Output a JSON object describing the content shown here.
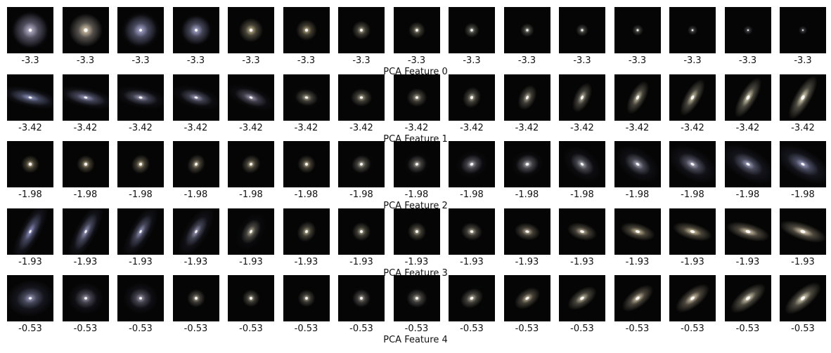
{
  "rows": [
    {
      "title": "PCA Feature 0",
      "value_label": "-3.3",
      "tiles": [
        {
          "halo": 0.95,
          "core": 0.55,
          "elong": 1.0,
          "angle": 0,
          "tint": "#b8b0c8",
          "wisp": 0.6
        },
        {
          "halo": 0.9,
          "core": 0.75,
          "elong": 1.0,
          "angle": 0,
          "tint": "#d8c8a8",
          "wisp": 0.45
        },
        {
          "halo": 0.85,
          "core": 0.45,
          "elong": 1.05,
          "angle": 20,
          "tint": "#a8a8d0",
          "wisp": 0.55
        },
        {
          "halo": 0.75,
          "core": 0.5,
          "elong": 1.0,
          "angle": 0,
          "tint": "#b0b0d8",
          "wisp": 0.4
        },
        {
          "halo": 0.6,
          "core": 0.6,
          "elong": 1.0,
          "angle": 0,
          "tint": "#e0d0a0",
          "wisp": 0.15
        },
        {
          "halo": 0.5,
          "core": 0.55,
          "elong": 1.0,
          "angle": 0,
          "tint": "#e0d0a0",
          "wisp": 0.05
        },
        {
          "halo": 0.42,
          "core": 0.5,
          "elong": 1.0,
          "angle": 0,
          "tint": "#e0d8b8",
          "wisp": 0.0
        },
        {
          "halo": 0.36,
          "core": 0.45,
          "elong": 1.0,
          "angle": 0,
          "tint": "#e0d8b8",
          "wisp": 0.0
        },
        {
          "halo": 0.3,
          "core": 0.4,
          "elong": 1.0,
          "angle": 0,
          "tint": "#e0e0d0",
          "wisp": 0.0
        },
        {
          "halo": 0.26,
          "core": 0.35,
          "elong": 1.0,
          "angle": 0,
          "tint": "#e0e0d0",
          "wisp": 0.0
        },
        {
          "halo": 0.22,
          "core": 0.3,
          "elong": 1.0,
          "angle": 0,
          "tint": "#d8d8d0",
          "wisp": 0.0
        },
        {
          "halo": 0.18,
          "core": 0.25,
          "elong": 1.0,
          "angle": 0,
          "tint": "#d0d0c8",
          "wisp": 0.0
        },
        {
          "halo": 0.14,
          "core": 0.18,
          "elong": 1.0,
          "angle": 0,
          "tint": "#c8c8c8",
          "wisp": 0.0
        },
        {
          "halo": 0.12,
          "core": 0.14,
          "elong": 1.0,
          "angle": 0,
          "tint": "#b8b8c0",
          "wisp": 0.0
        },
        {
          "halo": 0.1,
          "core": 0.1,
          "elong": 1.0,
          "angle": 0,
          "tint": "#b0b0c0",
          "wisp": 0.0
        }
      ]
    },
    {
      "title": "PCA Feature 1",
      "value_label": "-3.42",
      "tiles": [
        {
          "halo": 0.6,
          "core": 0.45,
          "elong": 3.0,
          "angle": -12,
          "tint": "#a0a8d8",
          "wisp": 0.5
        },
        {
          "halo": 0.6,
          "core": 0.45,
          "elong": 2.8,
          "angle": -12,
          "tint": "#a8a8d0",
          "wisp": 0.45
        },
        {
          "halo": 0.55,
          "core": 0.5,
          "elong": 2.4,
          "angle": -10,
          "tint": "#b0b0d0",
          "wisp": 0.35
        },
        {
          "halo": 0.55,
          "core": 0.45,
          "elong": 2.2,
          "angle": -15,
          "tint": "#b0b0d0",
          "wisp": 0.3
        },
        {
          "halo": 0.55,
          "core": 0.45,
          "elong": 2.2,
          "angle": -20,
          "tint": "#b8b0c8",
          "wisp": 0.3
        },
        {
          "halo": 0.45,
          "core": 0.45,
          "elong": 1.4,
          "angle": -10,
          "tint": "#d8d0b0",
          "wisp": 0.1
        },
        {
          "halo": 0.45,
          "core": 0.45,
          "elong": 1.2,
          "angle": 0,
          "tint": "#d8d0b0",
          "wisp": 0.05
        },
        {
          "halo": 0.45,
          "core": 0.45,
          "elong": 1.1,
          "angle": 0,
          "tint": "#d8d0b8",
          "wisp": 0.0
        },
        {
          "halo": 0.45,
          "core": 0.55,
          "elong": 1.2,
          "angle": 70,
          "tint": "#e0d8c0",
          "wisp": 0.0
        },
        {
          "halo": 0.5,
          "core": 0.55,
          "elong": 1.6,
          "angle": 65,
          "tint": "#e0d8c0",
          "wisp": 0.0
        },
        {
          "halo": 0.55,
          "core": 0.6,
          "elong": 2.0,
          "angle": 65,
          "tint": "#e0d8c0",
          "wisp": 0.0
        },
        {
          "halo": 0.6,
          "core": 0.65,
          "elong": 2.3,
          "angle": 62,
          "tint": "#e8e0c0",
          "wisp": 0.0
        },
        {
          "halo": 0.65,
          "core": 0.7,
          "elong": 2.6,
          "angle": 60,
          "tint": "#e8e0c0",
          "wisp": 0.0
        },
        {
          "halo": 0.7,
          "core": 0.75,
          "elong": 2.8,
          "angle": 60,
          "tint": "#f0e8c8",
          "wisp": 0.0
        },
        {
          "halo": 0.75,
          "core": 0.8,
          "elong": 3.0,
          "angle": 60,
          "tint": "#f0e8c8",
          "wisp": 0.0
        }
      ]
    },
    {
      "title": "PCA Feature 2",
      "value_label": "-1.98",
      "tiles": [
        {
          "halo": 0.4,
          "core": 0.6,
          "elong": 1.0,
          "angle": 0,
          "tint": "#f0e0b0",
          "wisp": 0.0
        },
        {
          "halo": 0.4,
          "core": 0.55,
          "elong": 1.0,
          "angle": 0,
          "tint": "#f0e0b0",
          "wisp": 0.0
        },
        {
          "halo": 0.42,
          "core": 0.55,
          "elong": 1.1,
          "angle": 60,
          "tint": "#f0e0b0",
          "wisp": 0.05
        },
        {
          "halo": 0.42,
          "core": 0.5,
          "elong": 1.2,
          "angle": 60,
          "tint": "#e8d8b0",
          "wisp": 0.05
        },
        {
          "halo": 0.42,
          "core": 0.5,
          "elong": 1.1,
          "angle": 40,
          "tint": "#e8d8b0",
          "wisp": 0.05
        },
        {
          "halo": 0.4,
          "core": 0.5,
          "elong": 1.0,
          "angle": 0,
          "tint": "#e8d8b0",
          "wisp": 0.05
        },
        {
          "halo": 0.42,
          "core": 0.5,
          "elong": 1.1,
          "angle": 20,
          "tint": "#e0d8c0",
          "wisp": 0.1
        },
        {
          "halo": 0.42,
          "core": 0.5,
          "elong": 1.1,
          "angle": 20,
          "tint": "#d8d0c0",
          "wisp": 0.15
        },
        {
          "halo": 0.48,
          "core": 0.55,
          "elong": 1.2,
          "angle": 20,
          "tint": "#c8c8d0",
          "wisp": 0.25
        },
        {
          "halo": 0.5,
          "core": 0.55,
          "elong": 1.2,
          "angle": 15,
          "tint": "#d0d0d0",
          "wisp": 0.25
        },
        {
          "halo": 0.52,
          "core": 0.5,
          "elong": 1.5,
          "angle": -40,
          "tint": "#c8c8d0",
          "wisp": 0.3
        },
        {
          "halo": 0.55,
          "core": 0.55,
          "elong": 1.6,
          "angle": -35,
          "tint": "#c8c8d8",
          "wisp": 0.35
        },
        {
          "halo": 0.58,
          "core": 0.55,
          "elong": 1.7,
          "angle": -30,
          "tint": "#c0c0d8",
          "wisp": 0.4
        },
        {
          "halo": 0.6,
          "core": 0.55,
          "elong": 1.8,
          "angle": -30,
          "tint": "#b8b8d8",
          "wisp": 0.45
        },
        {
          "halo": 0.62,
          "core": 0.55,
          "elong": 2.0,
          "angle": -30,
          "tint": "#b0b0d8",
          "wisp": 0.5
        }
      ]
    },
    {
      "title": "PCA Feature 3",
      "value_label": "-1.93",
      "tiles": [
        {
          "halo": 0.6,
          "core": 0.45,
          "elong": 3.0,
          "angle": 62,
          "tint": "#a0a0d8",
          "wisp": 0.55
        },
        {
          "halo": 0.6,
          "core": 0.45,
          "elong": 2.8,
          "angle": 62,
          "tint": "#a8a8d0",
          "wisp": 0.5
        },
        {
          "halo": 0.58,
          "core": 0.45,
          "elong": 2.6,
          "angle": 60,
          "tint": "#a8a8d0",
          "wisp": 0.45
        },
        {
          "halo": 0.55,
          "core": 0.45,
          "elong": 2.3,
          "angle": 58,
          "tint": "#b0b0d0",
          "wisp": 0.4
        },
        {
          "halo": 0.5,
          "core": 0.5,
          "elong": 1.6,
          "angle": 60,
          "tint": "#d8d0b0",
          "wisp": 0.2
        },
        {
          "halo": 0.45,
          "core": 0.5,
          "elong": 1.2,
          "angle": 60,
          "tint": "#e0d8b0",
          "wisp": 0.05
        },
        {
          "halo": 0.42,
          "core": 0.5,
          "elong": 1.0,
          "angle": 0,
          "tint": "#e0d8b8",
          "wisp": 0.0
        },
        {
          "halo": 0.42,
          "core": 0.5,
          "elong": 1.0,
          "angle": 0,
          "tint": "#e0d8b8",
          "wisp": 0.0
        },
        {
          "halo": 0.45,
          "core": 0.5,
          "elong": 1.2,
          "angle": -10,
          "tint": "#e0d8c0",
          "wisp": 0.0
        },
        {
          "halo": 0.5,
          "core": 0.55,
          "elong": 1.5,
          "angle": -10,
          "tint": "#e8d8b8",
          "wisp": 0.0
        },
        {
          "halo": 0.55,
          "core": 0.6,
          "elong": 1.8,
          "angle": -15,
          "tint": "#e8d8b8",
          "wisp": 0.0
        },
        {
          "halo": 0.6,
          "core": 0.65,
          "elong": 2.2,
          "angle": -15,
          "tint": "#f0e0b8",
          "wisp": 0.0
        },
        {
          "halo": 0.65,
          "core": 0.7,
          "elong": 2.5,
          "angle": -15,
          "tint": "#f0e0b8",
          "wisp": 0.0
        },
        {
          "halo": 0.7,
          "core": 0.75,
          "elong": 2.7,
          "angle": -15,
          "tint": "#f0e0c0",
          "wisp": 0.0
        },
        {
          "halo": 0.75,
          "core": 0.8,
          "elong": 2.9,
          "angle": -18,
          "tint": "#f0e0c0",
          "wisp": 0.0
        }
      ]
    },
    {
      "title": "PCA Feature 4",
      "value_label": "-0.53",
      "tiles": [
        {
          "halo": 0.6,
          "core": 0.45,
          "elong": 1.3,
          "angle": 10,
          "tint": "#a8a8c8",
          "wisp": 0.55
        },
        {
          "halo": 0.5,
          "core": 0.45,
          "elong": 1.1,
          "angle": 0,
          "tint": "#b8b0c0",
          "wisp": 0.4
        },
        {
          "halo": 0.5,
          "core": 0.45,
          "elong": 1.1,
          "angle": 0,
          "tint": "#b8b0c0",
          "wisp": 0.4
        },
        {
          "halo": 0.4,
          "core": 0.5,
          "elong": 1.0,
          "angle": 0,
          "tint": "#e0d8c0",
          "wisp": 0.05
        },
        {
          "halo": 0.38,
          "core": 0.5,
          "elong": 1.0,
          "angle": 0,
          "tint": "#e0d8c0",
          "wisp": 0.0
        },
        {
          "halo": 0.38,
          "core": 0.45,
          "elong": 1.0,
          "angle": 0,
          "tint": "#e0d8c0",
          "wisp": 0.0
        },
        {
          "halo": 0.4,
          "core": 0.45,
          "elong": 1.0,
          "angle": 0,
          "tint": "#d8d0c0",
          "wisp": 0.1
        },
        {
          "halo": 0.45,
          "core": 0.5,
          "elong": 1.1,
          "angle": 0,
          "tint": "#d8d0c0",
          "wisp": 0.1
        },
        {
          "halo": 0.5,
          "core": 0.55,
          "elong": 1.3,
          "angle": 30,
          "tint": "#e0d8c0",
          "wisp": 0.05
        },
        {
          "halo": 0.55,
          "core": 0.6,
          "elong": 1.6,
          "angle": 35,
          "tint": "#e8d8b8",
          "wisp": 0.0
        },
        {
          "halo": 0.6,
          "core": 0.65,
          "elong": 1.9,
          "angle": 35,
          "tint": "#e8e0c0",
          "wisp": 0.0
        },
        {
          "halo": 0.65,
          "core": 0.7,
          "elong": 2.1,
          "angle": 38,
          "tint": "#f0e0c0",
          "wisp": 0.0
        },
        {
          "halo": 0.7,
          "core": 0.72,
          "elong": 2.2,
          "angle": 38,
          "tint": "#f0e0c0",
          "wisp": 0.0
        },
        {
          "halo": 0.72,
          "core": 0.75,
          "elong": 2.3,
          "angle": 38,
          "tint": "#f0e8c8",
          "wisp": 0.0
        },
        {
          "halo": 0.75,
          "core": 0.78,
          "elong": 2.4,
          "angle": 40,
          "tint": "#f0e8c8",
          "wisp": 0.0
        }
      ]
    }
  ]
}
